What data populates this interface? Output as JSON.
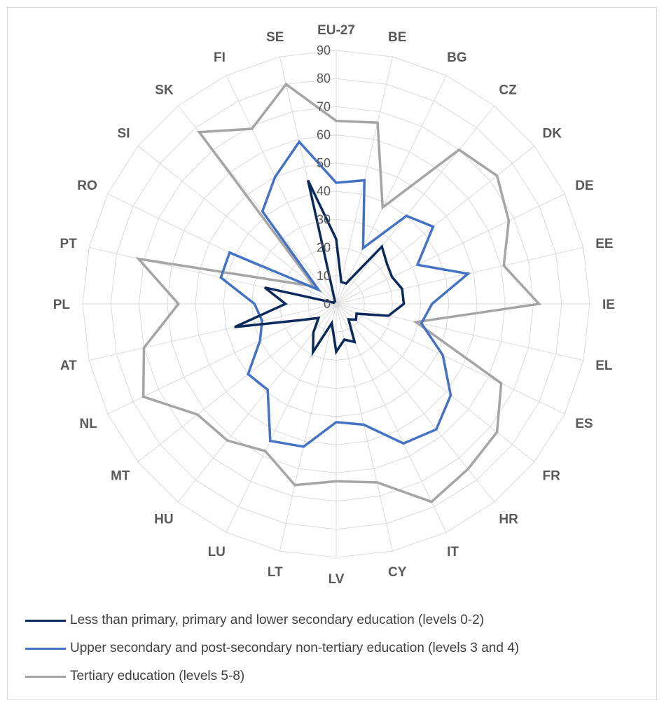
{
  "chart_data": {
    "type": "radar",
    "categories": [
      "EU-27",
      "BE",
      "BG",
      "CZ",
      "DK",
      "DE",
      "EE",
      "IE",
      "EL",
      "ES",
      "FR",
      "HR",
      "IT",
      "CY",
      "LV",
      "LT",
      "LU",
      "HU",
      "MT",
      "NL",
      "AT",
      "PL",
      "PT",
      "RO",
      "SI",
      "SK",
      "FI",
      "SE"
    ],
    "rlim": [
      0,
      90
    ],
    "ticks": [
      0,
      10,
      20,
      30,
      40,
      50,
      60,
      70,
      80,
      90
    ],
    "grid": true,
    "legend_position": "bottom",
    "series": [
      {
        "name": "Less than primary, primary and lower secondary education (levels 0-2)",
        "color": "#0b2a5c",
        "values": [
          23,
          8,
          8,
          26,
          23,
          22,
          24,
          24,
          19,
          8,
          9,
          7,
          15,
          13,
          17,
          7,
          19,
          13,
          8,
          13,
          37,
          18,
          26,
          1,
          1,
          1,
          1,
          45
        ]
      },
      {
        "name": "Upper secondary and post-secondary non-tertiary education (levels 3 and 4)",
        "color": "#4472c4",
        "values": [
          43,
          45,
          22,
          40,
          44,
          32,
          48,
          34,
          31,
          42,
          52,
          57,
          55,
          44,
          42,
          52,
          54,
          39,
          40,
          30,
          27,
          29,
          42,
          42,
          8,
          42,
          50,
          59
        ]
      },
      {
        "name": "Tertiary education (levels 5-8)",
        "color": "#a5a5a5",
        "values": [
          65,
          66,
          38,
          70,
          73,
          68,
          61,
          72,
          29,
          65,
          73,
          75,
          78,
          65,
          63,
          66,
          58,
          62,
          63,
          76,
          70,
          56,
          72,
          17,
          10,
          78,
          69,
          80
        ]
      }
    ]
  }
}
